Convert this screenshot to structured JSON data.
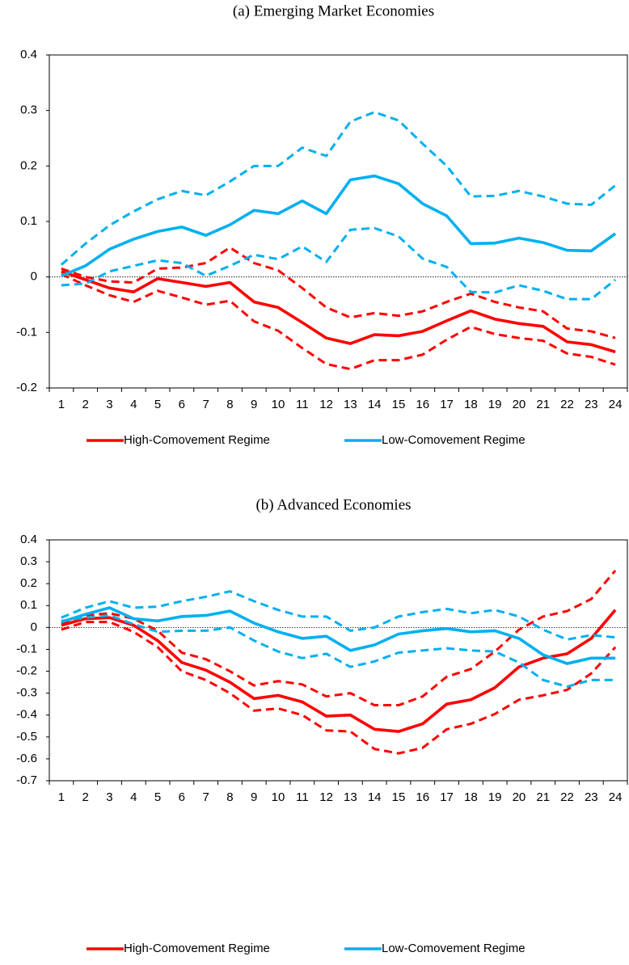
{
  "chart_data": [
    {
      "type": "line",
      "title": "(a) Emerging Market Economies",
      "categories": [
        1,
        2,
        3,
        4,
        5,
        6,
        7,
        8,
        9,
        10,
        11,
        12,
        13,
        14,
        15,
        16,
        17,
        18,
        19,
        20,
        21,
        22,
        23,
        24
      ],
      "ylim": [
        -0.2,
        0.4
      ],
      "yticks": [
        -0.2,
        -0.1,
        0,
        0.1,
        0.2,
        0.3,
        0.4
      ],
      "zero_line": true,
      "series": [
        {
          "name": "High-Comovement Regime",
          "color": "#ff0000",
          "values": [
            0.01,
            -0.005,
            -0.02,
            -0.027,
            -0.003,
            -0.01,
            -0.017,
            -0.01,
            -0.045,
            -0.055,
            -0.082,
            -0.11,
            -0.12,
            -0.104,
            -0.106,
            -0.098,
            -0.079,
            -0.061,
            -0.076,
            -0.084,
            -0.089,
            -0.117,
            -0.122,
            -0.135
          ],
          "upper": [
            0.015,
            0.0,
            -0.008,
            -0.01,
            0.015,
            0.017,
            0.025,
            0.053,
            0.025,
            0.012,
            -0.02,
            -0.055,
            -0.073,
            -0.065,
            -0.07,
            -0.062,
            -0.045,
            -0.03,
            -0.045,
            -0.055,
            -0.062,
            -0.093,
            -0.098,
            -0.11
          ],
          "lower": [
            0.005,
            -0.015,
            -0.033,
            -0.045,
            -0.025,
            -0.037,
            -0.05,
            -0.043,
            -0.08,
            -0.097,
            -0.128,
            -0.157,
            -0.166,
            -0.15,
            -0.15,
            -0.14,
            -0.113,
            -0.09,
            -0.103,
            -0.11,
            -0.115,
            -0.138,
            -0.144,
            -0.158
          ]
        },
        {
          "name": "Low-Comovement Regime",
          "color": "#00b0f0",
          "values": [
            0.002,
            0.02,
            0.05,
            0.068,
            0.082,
            0.09,
            0.075,
            0.094,
            0.12,
            0.114,
            0.137,
            0.114,
            0.175,
            0.182,
            0.168,
            0.132,
            0.11,
            0.06,
            0.061,
            0.07,
            0.062,
            0.048,
            0.047,
            0.078
          ],
          "upper": [
            0.022,
            0.06,
            0.093,
            0.118,
            0.14,
            0.155,
            0.147,
            0.172,
            0.2,
            0.2,
            0.233,
            0.218,
            0.28,
            0.297,
            0.282,
            0.24,
            0.2,
            0.145,
            0.146,
            0.155,
            0.145,
            0.132,
            0.13,
            0.165
          ],
          "lower": [
            -0.015,
            -0.012,
            0.01,
            0.02,
            0.03,
            0.025,
            0.002,
            0.02,
            0.04,
            0.032,
            0.055,
            0.027,
            0.085,
            0.088,
            0.073,
            0.033,
            0.018,
            -0.027,
            -0.028,
            -0.015,
            -0.025,
            -0.04,
            -0.04,
            -0.005
          ]
        }
      ]
    },
    {
      "type": "line",
      "title": "(b) Advanced Economies",
      "categories": [
        1,
        2,
        3,
        4,
        5,
        6,
        7,
        8,
        9,
        10,
        11,
        12,
        13,
        14,
        15,
        16,
        17,
        18,
        19,
        20,
        21,
        22,
        23,
        24
      ],
      "ylim": [
        -0.7,
        0.4
      ],
      "yticks": [
        -0.7,
        -0.6,
        -0.5,
        -0.4,
        -0.3,
        -0.2,
        -0.1,
        0,
        0.1,
        0.2,
        0.3,
        0.4
      ],
      "zero_line": true,
      "series": [
        {
          "name": "High-Comovement Regime",
          "color": "#ff0000",
          "values": [
            0.01,
            0.04,
            0.045,
            0.01,
            -0.06,
            -0.16,
            -0.195,
            -0.25,
            -0.325,
            -0.31,
            -0.34,
            -0.405,
            -0.4,
            -0.465,
            -0.475,
            -0.44,
            -0.35,
            -0.33,
            -0.275,
            -0.18,
            -0.14,
            -0.12,
            -0.05,
            0.08
          ],
          "upper": [
            0.02,
            0.055,
            0.065,
            0.04,
            -0.015,
            -0.115,
            -0.145,
            -0.2,
            -0.265,
            -0.245,
            -0.26,
            -0.315,
            -0.3,
            -0.355,
            -0.355,
            -0.315,
            -0.225,
            -0.19,
            -0.11,
            -0.01,
            0.05,
            0.075,
            0.13,
            0.26
          ],
          "lower": [
            -0.01,
            0.025,
            0.025,
            -0.02,
            -0.09,
            -0.2,
            -0.24,
            -0.3,
            -0.38,
            -0.37,
            -0.4,
            -0.47,
            -0.475,
            -0.555,
            -0.575,
            -0.55,
            -0.465,
            -0.44,
            -0.395,
            -0.33,
            -0.31,
            -0.285,
            -0.21,
            -0.09
          ]
        },
        {
          "name": "Low-Comovement Regime",
          "color": "#00b0f0",
          "values": [
            0.025,
            0.06,
            0.09,
            0.04,
            0.03,
            0.05,
            0.055,
            0.075,
            0.02,
            -0.02,
            -0.05,
            -0.04,
            -0.105,
            -0.08,
            -0.03,
            -0.015,
            -0.005,
            -0.02,
            -0.015,
            -0.05,
            -0.125,
            -0.165,
            -0.14,
            -0.14
          ],
          "upper": [
            0.045,
            0.09,
            0.12,
            0.09,
            0.095,
            0.12,
            0.14,
            0.165,
            0.12,
            0.08,
            0.05,
            0.05,
            -0.015,
            0.0,
            0.05,
            0.07,
            0.085,
            0.065,
            0.08,
            0.05,
            -0.01,
            -0.055,
            -0.035,
            -0.045
          ],
          "lower": [
            0.03,
            0.045,
            0.055,
            0.015,
            -0.02,
            -0.015,
            -0.015,
            0.0,
            -0.06,
            -0.11,
            -0.14,
            -0.12,
            -0.18,
            -0.155,
            -0.115,
            -0.105,
            -0.095,
            -0.105,
            -0.11,
            -0.16,
            -0.24,
            -0.27,
            -0.24,
            -0.24
          ]
        }
      ]
    }
  ]
}
